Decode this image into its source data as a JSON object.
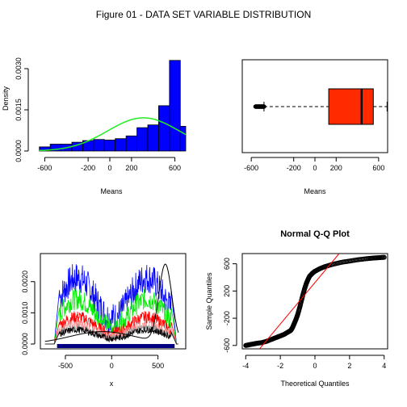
{
  "figure_title": "Figure 01 - DATA SET VARIABLE DISTRIBUTION",
  "colors": {
    "hist_fill": "#0000ff",
    "density_curve": "#22ee22",
    "box_fill": "#ff2a00",
    "qq_line": "#ff0000",
    "kde_blue": "#0000ff",
    "kde_green": "#00ee00",
    "kde_red": "#ff0000",
    "rug": "#000080"
  },
  "chart_data": [
    {
      "type": "bar",
      "panel": "histogram",
      "xlabel": "Means",
      "ylabel": "Density",
      "xlim": [
        -700,
        700
      ],
      "ylim": [
        0,
        0.0035
      ],
      "xticks": [
        "-600",
        "-200",
        "0",
        "200",
        "600"
      ],
      "xtick_values": [
        -600,
        -200,
        0,
        200,
        600
      ],
      "yticks": [
        "0.0000",
        "0.0015",
        "0.0030"
      ],
      "ytick_values": [
        0,
        0.0015,
        0.003
      ],
      "bin_edges": [
        -650,
        -550,
        -450,
        -350,
        -250,
        -150,
        -50,
        50,
        150,
        250,
        350,
        450,
        550,
        650,
        700
      ],
      "values": [
        0.00015,
        0.00025,
        0.00025,
        0.00032,
        0.00038,
        0.00042,
        0.0004,
        0.00045,
        0.00055,
        0.00085,
        0.00095,
        0.00165,
        0.0033,
        0.0009
      ],
      "overlay_normal": {
        "mean": 310,
        "sd": 330
      }
    },
    {
      "type": "box",
      "panel": "boxplot",
      "xlabel": "Means",
      "xlim": [
        -700,
        700
      ],
      "xticks": [
        "-600",
        "-200",
        "0",
        "200",
        "600"
      ],
      "xtick_values": [
        -600,
        -200,
        0,
        200,
        600
      ],
      "whisker_low": -480,
      "q1": 130,
      "median": 440,
      "q3": 550,
      "whisker_high": 680,
      "outliers_range": [
        -560,
        -480
      ]
    },
    {
      "type": "line",
      "panel": "density-lines",
      "xlabel": "x",
      "xlim": [
        -770,
        800
      ],
      "ylim": [
        0,
        0.0029
      ],
      "xticks": [
        "-500",
        "0",
        "500"
      ],
      "xtick_values": [
        -500,
        0,
        500
      ],
      "yticks": [
        "0.0000",
        "0.0010",
        "0.0020"
      ],
      "ytick_values": [
        0,
        0.001,
        0.002
      ],
      "series": [
        {
          "color": "#0000ff",
          "level": 0.00185
        },
        {
          "color": "#00ee00",
          "level": 0.00125
        },
        {
          "color": "#ff0000",
          "level": 0.00075
        },
        {
          "color": "#ff9999",
          "level": 0.00055
        },
        {
          "color": "#999999",
          "level": 0.00045
        },
        {
          "color": "#000000",
          "level": 0.0004
        }
      ]
    },
    {
      "type": "scatter",
      "panel": "qq-plot",
      "title": "Normal Q-Q Plot",
      "xlabel": "Theoretical Quantiles",
      "ylabel": "Sample Quantiles",
      "xlim": [
        -4.2,
        4.2
      ],
      "ylim": [
        -650,
        750
      ],
      "xticks": [
        "-4",
        "-2",
        "0",
        "2",
        "4"
      ],
      "xtick_values": [
        -4,
        -2,
        0,
        2,
        4
      ],
      "yticks": [
        "-600",
        "-200",
        "200",
        "600"
      ],
      "ytick_values": [
        -600,
        -200,
        200,
        600
      ],
      "points": [
        [
          -4.0,
          -600
        ],
        [
          -3.8,
          -590
        ],
        [
          -3.6,
          -580
        ],
        [
          -3.4,
          -570
        ],
        [
          -3.1,
          -560
        ],
        [
          -2.8,
          -540
        ],
        [
          -2.5,
          -510
        ],
        [
          -2.2,
          -480
        ],
        [
          -2.0,
          -460
        ],
        [
          -1.8,
          -440
        ],
        [
          -1.6,
          -410
        ],
        [
          -1.4,
          -380
        ],
        [
          -1.3,
          -340
        ],
        [
          -1.2,
          -280
        ],
        [
          -1.1,
          -220
        ],
        [
          -1.0,
          -150
        ],
        [
          -0.9,
          -60
        ],
        [
          -0.8,
          40
        ],
        [
          -0.7,
          140
        ],
        [
          -0.6,
          230
        ],
        [
          -0.5,
          310
        ],
        [
          -0.4,
          370
        ],
        [
          -0.3,
          420
        ],
        [
          -0.15,
          460
        ],
        [
          0.0,
          490
        ],
        [
          0.3,
          530
        ],
        [
          0.6,
          560
        ],
        [
          1.0,
          590
        ],
        [
          1.5,
          620
        ],
        [
          2.0,
          640
        ],
        [
          2.5,
          660
        ],
        [
          3.0,
          675
        ],
        [
          3.4,
          685
        ],
        [
          3.7,
          690
        ],
        [
          4.0,
          695
        ]
      ],
      "ref_line": [
        [
          -3.2,
          -650
        ],
        [
          1.4,
          750
        ]
      ]
    }
  ]
}
